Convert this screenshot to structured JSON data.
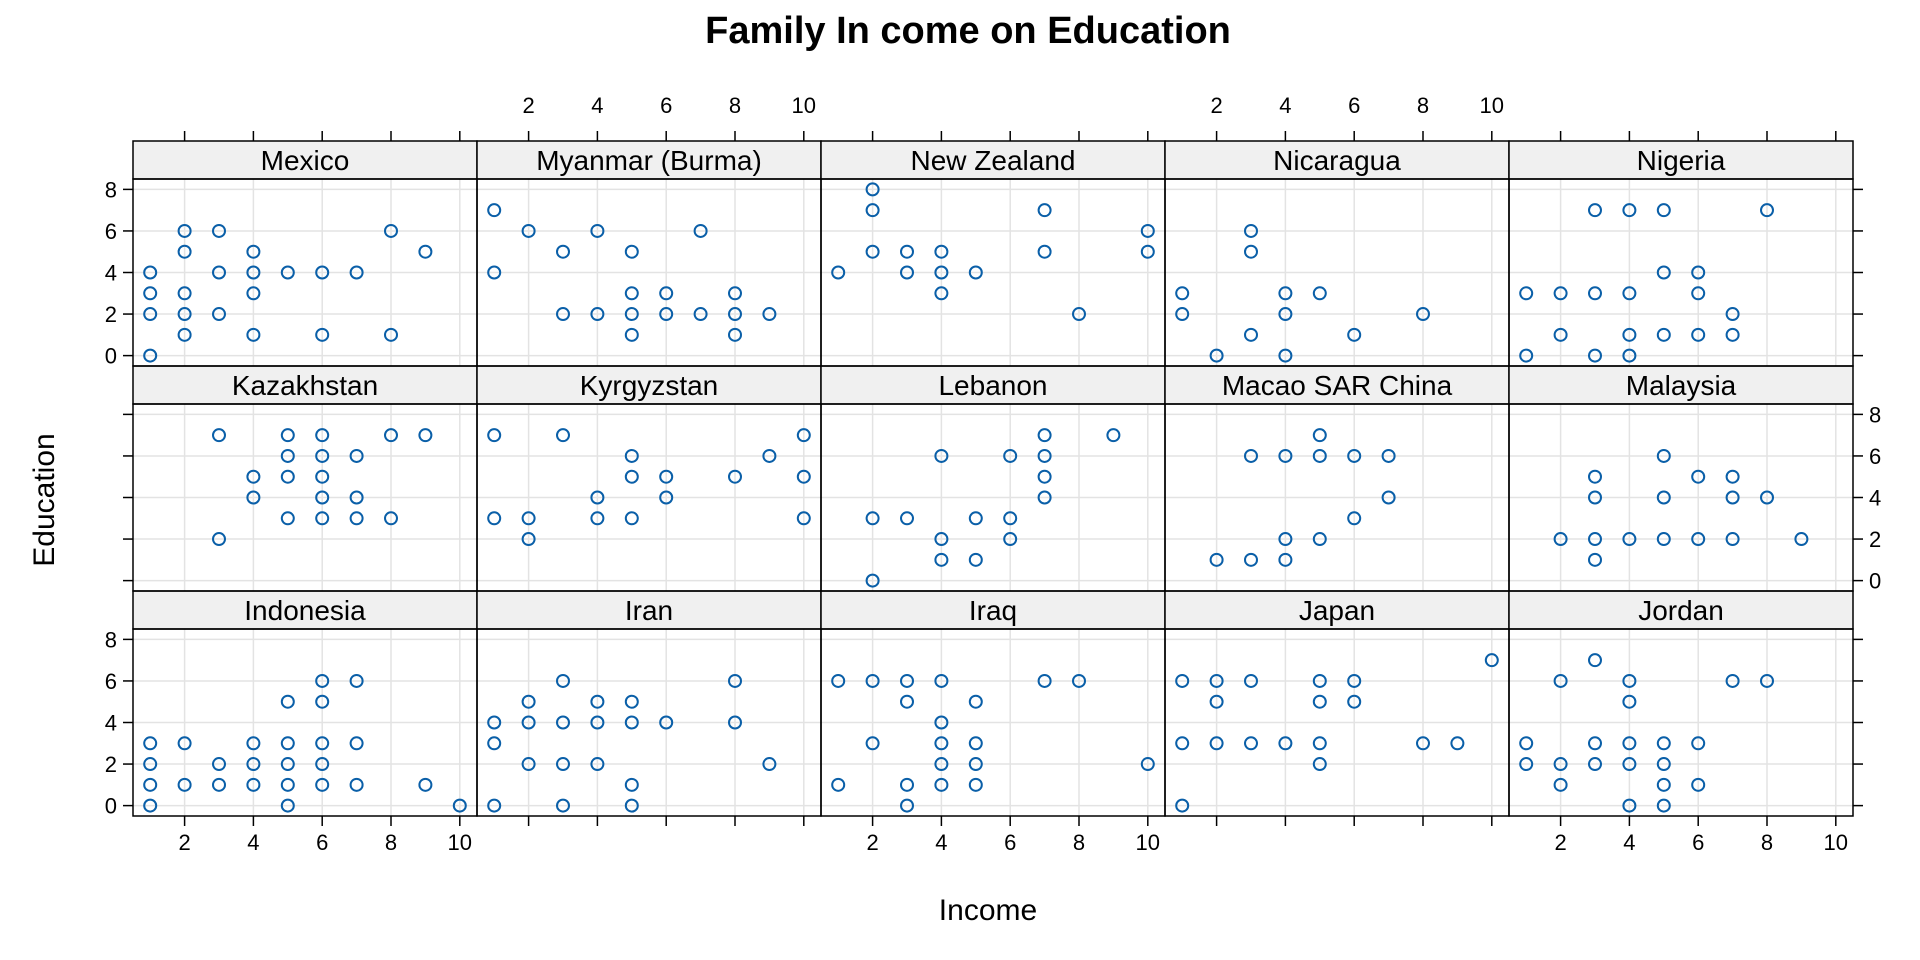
{
  "chart_data": {
    "type": "scatter",
    "title": "Family In come on Education",
    "xlabel": "Income",
    "ylabel": "Education",
    "xlim": [
      0.5,
      10.5
    ],
    "ylim": [
      -0.5,
      8.5
    ],
    "xticks": [
      2,
      4,
      6,
      8,
      10
    ],
    "yticks": [
      0,
      2,
      4,
      6,
      8
    ],
    "grid": true,
    "layout": {
      "columns": 5,
      "rows": 3
    },
    "panels": [
      {
        "name": "Indonesia",
        "points": [
          [
            1,
            0
          ],
          [
            1,
            1
          ],
          [
            1,
            2
          ],
          [
            1,
            3
          ],
          [
            2,
            1
          ],
          [
            2,
            3
          ],
          [
            3,
            1
          ],
          [
            3,
            2
          ],
          [
            4,
            1
          ],
          [
            4,
            2
          ],
          [
            4,
            3
          ],
          [
            5,
            0
          ],
          [
            5,
            1
          ],
          [
            5,
            2
          ],
          [
            5,
            3
          ],
          [
            5,
            5
          ],
          [
            6,
            1
          ],
          [
            6,
            2
          ],
          [
            6,
            3
          ],
          [
            6,
            5
          ],
          [
            6,
            6
          ],
          [
            7,
            1
          ],
          [
            7,
            3
          ],
          [
            7,
            6
          ],
          [
            9,
            1
          ],
          [
            10,
            0
          ]
        ]
      },
      {
        "name": "Iran",
        "points": [
          [
            1,
            0
          ],
          [
            1,
            3
          ],
          [
            1,
            4
          ],
          [
            2,
            2
          ],
          [
            2,
            4
          ],
          [
            2,
            5
          ],
          [
            3,
            0
          ],
          [
            3,
            2
          ],
          [
            3,
            4
          ],
          [
            3,
            6
          ],
          [
            4,
            2
          ],
          [
            4,
            4
          ],
          [
            4,
            5
          ],
          [
            5,
            0
          ],
          [
            5,
            1
          ],
          [
            5,
            4
          ],
          [
            5,
            5
          ],
          [
            6,
            4
          ],
          [
            8,
            4
          ],
          [
            8,
            6
          ],
          [
            9,
            2
          ]
        ]
      },
      {
        "name": "Iraq",
        "points": [
          [
            1,
            1
          ],
          [
            1,
            6
          ],
          [
            2,
            3
          ],
          [
            2,
            6
          ],
          [
            3,
            0
          ],
          [
            3,
            1
          ],
          [
            3,
            5
          ],
          [
            3,
            6
          ],
          [
            4,
            1
          ],
          [
            4,
            2
          ],
          [
            4,
            3
          ],
          [
            4,
            4
          ],
          [
            4,
            6
          ],
          [
            5,
            1
          ],
          [
            5,
            2
          ],
          [
            5,
            3
          ],
          [
            5,
            5
          ],
          [
            7,
            6
          ],
          [
            8,
            6
          ],
          [
            10,
            2
          ]
        ]
      },
      {
        "name": "Japan",
        "points": [
          [
            1,
            0
          ],
          [
            1,
            3
          ],
          [
            1,
            6
          ],
          [
            2,
            3
          ],
          [
            2,
            5
          ],
          [
            2,
            6
          ],
          [
            3,
            3
          ],
          [
            3,
            6
          ],
          [
            4,
            3
          ],
          [
            5,
            2
          ],
          [
            5,
            3
          ],
          [
            5,
            5
          ],
          [
            5,
            6
          ],
          [
            6,
            5
          ],
          [
            6,
            6
          ],
          [
            8,
            3
          ],
          [
            9,
            3
          ],
          [
            10,
            7
          ]
        ]
      },
      {
        "name": "Jordan",
        "points": [
          [
            1,
            2
          ],
          [
            1,
            3
          ],
          [
            2,
            1
          ],
          [
            2,
            2
          ],
          [
            2,
            6
          ],
          [
            3,
            2
          ],
          [
            3,
            3
          ],
          [
            3,
            7
          ],
          [
            4,
            0
          ],
          [
            4,
            2
          ],
          [
            4,
            3
          ],
          [
            4,
            5
          ],
          [
            4,
            6
          ],
          [
            5,
            0
          ],
          [
            5,
            1
          ],
          [
            5,
            2
          ],
          [
            5,
            3
          ],
          [
            6,
            1
          ],
          [
            6,
            3
          ],
          [
            7,
            6
          ],
          [
            8,
            6
          ]
        ]
      },
      {
        "name": "Kazakhstan",
        "points": [
          [
            3,
            2
          ],
          [
            3,
            7
          ],
          [
            4,
            4
          ],
          [
            4,
            5
          ],
          [
            5,
            3
          ],
          [
            5,
            5
          ],
          [
            5,
            6
          ],
          [
            5,
            7
          ],
          [
            6,
            3
          ],
          [
            6,
            4
          ],
          [
            6,
            5
          ],
          [
            6,
            6
          ],
          [
            6,
            7
          ],
          [
            7,
            3
          ],
          [
            7,
            4
          ],
          [
            7,
            6
          ],
          [
            8,
            3
          ],
          [
            8,
            7
          ],
          [
            9,
            7
          ]
        ]
      },
      {
        "name": "Kyrgyzstan",
        "points": [
          [
            1,
            3
          ],
          [
            1,
            7
          ],
          [
            2,
            2
          ],
          [
            2,
            3
          ],
          [
            3,
            7
          ],
          [
            4,
            3
          ],
          [
            4,
            4
          ],
          [
            5,
            3
          ],
          [
            5,
            5
          ],
          [
            5,
            6
          ],
          [
            6,
            4
          ],
          [
            6,
            5
          ],
          [
            8,
            5
          ],
          [
            9,
            6
          ],
          [
            10,
            3
          ],
          [
            10,
            5
          ],
          [
            10,
            7
          ]
        ]
      },
      {
        "name": "Lebanon",
        "points": [
          [
            2,
            0
          ],
          [
            2,
            3
          ],
          [
            3,
            3
          ],
          [
            4,
            1
          ],
          [
            4,
            2
          ],
          [
            4,
            6
          ],
          [
            5,
            1
          ],
          [
            5,
            3
          ],
          [
            6,
            2
          ],
          [
            6,
            3
          ],
          [
            6,
            6
          ],
          [
            7,
            4
          ],
          [
            7,
            5
          ],
          [
            7,
            6
          ],
          [
            7,
            7
          ],
          [
            9,
            7
          ]
        ]
      },
      {
        "name": "Macao SAR China",
        "points": [
          [
            2,
            1
          ],
          [
            3,
            1
          ],
          [
            3,
            6
          ],
          [
            4,
            1
          ],
          [
            4,
            2
          ],
          [
            4,
            6
          ],
          [
            5,
            2
          ],
          [
            5,
            6
          ],
          [
            5,
            7
          ],
          [
            6,
            3
          ],
          [
            6,
            6
          ],
          [
            7,
            4
          ],
          [
            7,
            6
          ]
        ]
      },
      {
        "name": "Malaysia",
        "points": [
          [
            2,
            2
          ],
          [
            3,
            1
          ],
          [
            3,
            2
          ],
          [
            3,
            4
          ],
          [
            3,
            5
          ],
          [
            4,
            2
          ],
          [
            5,
            2
          ],
          [
            5,
            4
          ],
          [
            5,
            6
          ],
          [
            6,
            2
          ],
          [
            6,
            5
          ],
          [
            7,
            2
          ],
          [
            7,
            4
          ],
          [
            7,
            5
          ],
          [
            8,
            4
          ],
          [
            9,
            2
          ]
        ]
      },
      {
        "name": "Mexico",
        "points": [
          [
            1,
            0
          ],
          [
            1,
            2
          ],
          [
            1,
            3
          ],
          [
            1,
            4
          ],
          [
            2,
            1
          ],
          [
            2,
            2
          ],
          [
            2,
            3
          ],
          [
            2,
            5
          ],
          [
            2,
            6
          ],
          [
            3,
            2
          ],
          [
            3,
            4
          ],
          [
            3,
            6
          ],
          [
            4,
            1
          ],
          [
            4,
            3
          ],
          [
            4,
            4
          ],
          [
            4,
            5
          ],
          [
            5,
            4
          ],
          [
            6,
            1
          ],
          [
            6,
            4
          ],
          [
            7,
            4
          ],
          [
            8,
            1
          ],
          [
            8,
            6
          ],
          [
            9,
            5
          ]
        ]
      },
      {
        "name": "Myanmar (Burma)",
        "points": [
          [
            1,
            4
          ],
          [
            1,
            7
          ],
          [
            2,
            6
          ],
          [
            3,
            2
          ],
          [
            3,
            5
          ],
          [
            4,
            2
          ],
          [
            4,
            6
          ],
          [
            5,
            1
          ],
          [
            5,
            2
          ],
          [
            5,
            3
          ],
          [
            5,
            5
          ],
          [
            6,
            2
          ],
          [
            6,
            3
          ],
          [
            7,
            2
          ],
          [
            7,
            6
          ],
          [
            8,
            1
          ],
          [
            8,
            2
          ],
          [
            8,
            3
          ],
          [
            9,
            2
          ]
        ]
      },
      {
        "name": "New Zealand",
        "points": [
          [
            1,
            4
          ],
          [
            2,
            5
          ],
          [
            2,
            7
          ],
          [
            2,
            8
          ],
          [
            3,
            4
          ],
          [
            3,
            5
          ],
          [
            4,
            3
          ],
          [
            4,
            4
          ],
          [
            4,
            5
          ],
          [
            5,
            4
          ],
          [
            7,
            5
          ],
          [
            7,
            7
          ],
          [
            8,
            2
          ],
          [
            10,
            5
          ],
          [
            10,
            6
          ]
        ]
      },
      {
        "name": "Nicaragua",
        "points": [
          [
            1,
            2
          ],
          [
            1,
            3
          ],
          [
            2,
            0
          ],
          [
            3,
            1
          ],
          [
            3,
            5
          ],
          [
            3,
            6
          ],
          [
            4,
            0
          ],
          [
            4,
            2
          ],
          [
            4,
            3
          ],
          [
            5,
            3
          ],
          [
            6,
            1
          ],
          [
            8,
            2
          ]
        ]
      },
      {
        "name": "Nigeria",
        "points": [
          [
            1,
            0
          ],
          [
            1,
            3
          ],
          [
            2,
            1
          ],
          [
            2,
            3
          ],
          [
            3,
            0
          ],
          [
            3,
            3
          ],
          [
            3,
            7
          ],
          [
            4,
            0
          ],
          [
            4,
            1
          ],
          [
            4,
            3
          ],
          [
            4,
            7
          ],
          [
            5,
            1
          ],
          [
            5,
            4
          ],
          [
            5,
            7
          ],
          [
            6,
            1
          ],
          [
            6,
            3
          ],
          [
            6,
            4
          ],
          [
            7,
            1
          ],
          [
            7,
            2
          ],
          [
            8,
            7
          ]
        ]
      }
    ]
  }
}
